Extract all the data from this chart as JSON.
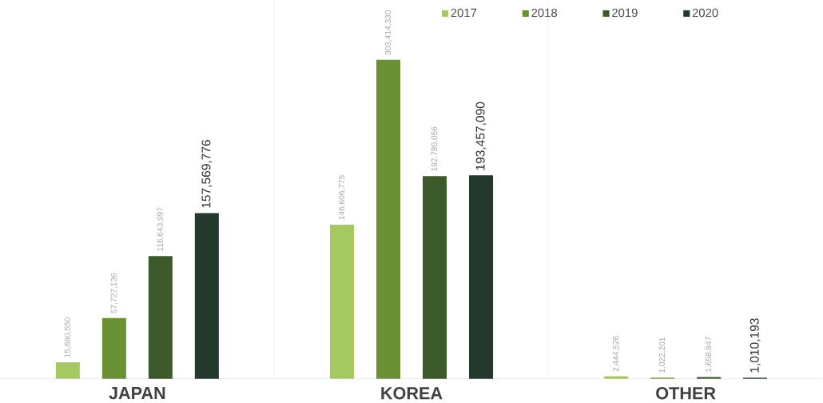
{
  "chart_data": {
    "type": "bar",
    "categories": [
      "JAPAN",
      "KOREA",
      "OTHER"
    ],
    "series": [
      {
        "name": "2017",
        "color": "#a5c95f",
        "values": [
          15680550,
          146606775,
          2444526
        ],
        "value_labels": [
          "15,680,550",
          "146,606,775",
          "2,444,526"
        ]
      },
      {
        "name": "2018",
        "color": "#6a9234",
        "values": [
          57727136,
          303414330,
          1022201
        ],
        "value_labels": [
          "57,727,136",
          "303,414,330",
          "1,022,201"
        ]
      },
      {
        "name": "2019",
        "color": "#3d5a2a",
        "values": [
          116643997,
          192780066,
          1658847
        ],
        "value_labels": [
          "116,643,997",
          "192,780,066",
          "1,658,847"
        ]
      },
      {
        "name": "2020",
        "color": "#22392b",
        "values": [
          157569776,
          193457090,
          1010193
        ],
        "value_labels": [
          "157,569,776",
          "193,457,090",
          "1,010,193"
        ]
      }
    ],
    "ylim": [
      0,
      360000000
    ],
    "legend": "top right"
  }
}
